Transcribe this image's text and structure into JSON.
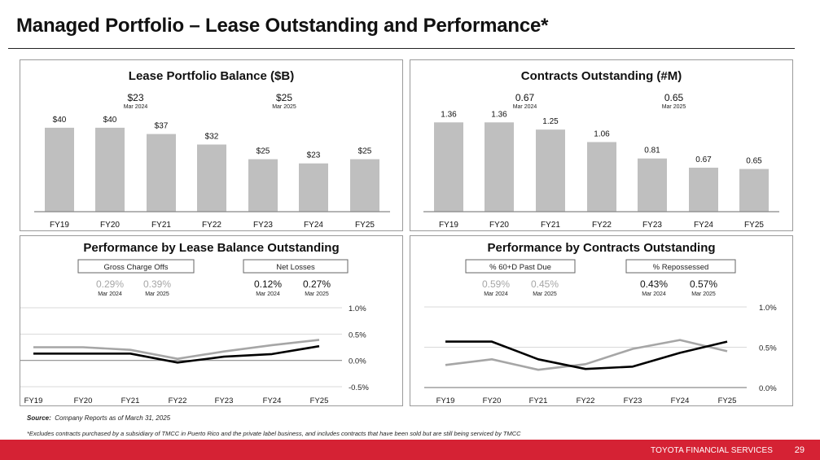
{
  "page": {
    "title": "Managed Portfolio – Lease Outstanding and Performance*",
    "source_label": "Source:",
    "source_text": "Company Reports as of March 31, 2025",
    "footnote": "*Excludes contracts purchased by a subsidiary of TMCC in Puerto Rico and the private label business, and includes contracts that have been sold but are still being serviced by TMCC",
    "brand": "TOYOTA FINANCIAL SERVICES",
    "page_number": "29",
    "brand_color": "#d52234"
  },
  "colors": {
    "bar": "#bfbfbf",
    "series_gray": "#a6a6a6",
    "series_black": "#000000",
    "muted_text": "#a6a6a6"
  },
  "chart_data": [
    {
      "id": "lease-balance",
      "type": "bar",
      "title": "Lease Portfolio Balance ($B)",
      "categories": [
        "FY19",
        "FY20",
        "FY21",
        "FY22",
        "FY23",
        "FY24",
        "FY25"
      ],
      "values": [
        40,
        40,
        37,
        32,
        25,
        23,
        25
      ],
      "data_labels": [
        "$40",
        "$40",
        "$37",
        "$32",
        "$25",
        "$23",
        "$25"
      ],
      "ylim": [
        0,
        45
      ],
      "grid": false,
      "callouts": [
        {
          "value": "$23",
          "label": "Mar 2024"
        },
        {
          "value": "$25",
          "label": "Mar 2025"
        }
      ]
    },
    {
      "id": "contracts",
      "type": "bar",
      "title": "Contracts Outstanding (#M)",
      "categories": [
        "FY19",
        "FY20",
        "FY21",
        "FY22",
        "FY23",
        "FY24",
        "FY25"
      ],
      "values": [
        1.36,
        1.36,
        1.25,
        1.06,
        0.81,
        0.67,
        0.65
      ],
      "data_labels": [
        "1.36",
        "1.36",
        "1.25",
        "1.06",
        "0.81",
        "0.67",
        "0.65"
      ],
      "ylim": [
        0,
        1.5
      ],
      "grid": false,
      "callouts": [
        {
          "value": "0.67",
          "label": "Mar 2024"
        },
        {
          "value": "0.65",
          "label": "Mar 2025"
        }
      ]
    },
    {
      "id": "perf-lease",
      "type": "line",
      "title": "Performance by  Lease Balance Outstanding",
      "categories": [
        "FY19",
        "FY20",
        "FY21",
        "FY22",
        "FY23",
        "FY24",
        "FY25"
      ],
      "ylim": [
        -0.5,
        1.0
      ],
      "yticks": [
        1.0,
        0.5,
        0.0,
        -0.5
      ],
      "ytick_labels": [
        "1.0%",
        "0.5%",
        "0.0%",
        "-0.5%"
      ],
      "grid": true,
      "series": [
        {
          "name": "Gross Charge Offs",
          "color": "#a6a6a6",
          "values": [
            0.25,
            0.25,
            0.2,
            0.03,
            0.17,
            0.29,
            0.39
          ],
          "callouts": [
            {
              "value": "0.29%",
              "label": "Mar 2024"
            },
            {
              "value": "0.39%",
              "label": "Mar 2025"
            }
          ]
        },
        {
          "name": "Net Losses",
          "color": "#000000",
          "values": [
            0.13,
            0.13,
            0.13,
            -0.04,
            0.07,
            0.12,
            0.27
          ],
          "callouts": [
            {
              "value": "0.12%",
              "label": "Mar 2024"
            },
            {
              "value": "0.27%",
              "label": "Mar 2025"
            }
          ]
        }
      ]
    },
    {
      "id": "perf-contracts",
      "type": "line",
      "title": "Performance by  Contracts Outstanding",
      "categories": [
        "FY19",
        "FY20",
        "FY21",
        "FY22",
        "FY23",
        "FY24",
        "FY25"
      ],
      "ylim": [
        0.0,
        1.0
      ],
      "yticks": [
        1.0,
        0.5,
        0.0
      ],
      "ytick_labels": [
        "1.0%",
        "0.5%",
        "0.0%"
      ],
      "grid": true,
      "series": [
        {
          "name": "% 60+D Past Due",
          "color": "#a6a6a6",
          "values": [
            0.28,
            0.35,
            0.22,
            0.29,
            0.48,
            0.59,
            0.45
          ],
          "callouts": [
            {
              "value": "0.59%",
              "label": "Mar 2024"
            },
            {
              "value": "0.45%",
              "label": "Mar 2025"
            }
          ]
        },
        {
          "name": "% Repossessed",
          "color": "#000000",
          "values": [
            0.57,
            0.57,
            0.35,
            0.23,
            0.26,
            0.43,
            0.57
          ],
          "callouts": [
            {
              "value": "0.43%",
              "label": "Mar 2024"
            },
            {
              "value": "0.57%",
              "label": "Mar 2025"
            }
          ]
        }
      ]
    }
  ]
}
